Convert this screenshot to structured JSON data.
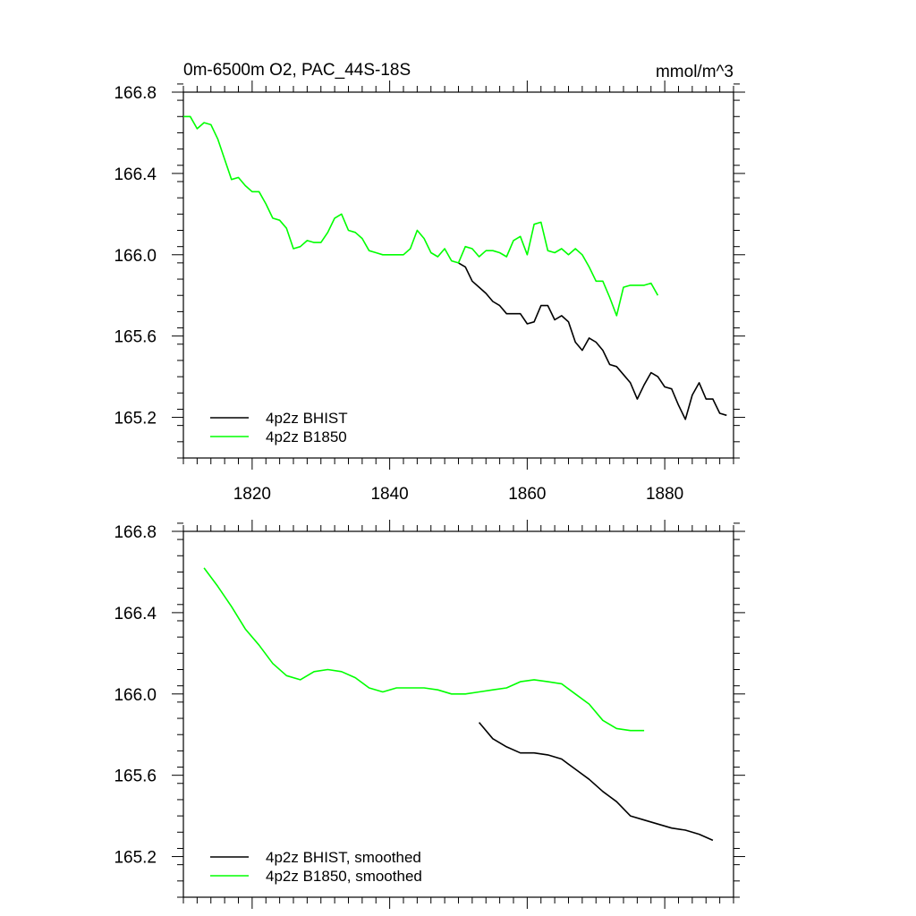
{
  "title_left": "0m-6500m O2, PAC_44S-18S",
  "title_right": "mmol/m^3",
  "colors": {
    "bhist": "#000000",
    "b1850": "#00ff00"
  },
  "chart_data": [
    {
      "type": "line",
      "panel": "top",
      "xlim": [
        1810,
        1890
      ],
      "ylim": [
        165.0,
        166.8
      ],
      "xticks": [
        1820,
        1840,
        1860,
        1880
      ],
      "xtick_labels": [
        "1820",
        "1840",
        "1860",
        "1880"
      ],
      "yticks": [
        165.2,
        165.6,
        166.0,
        166.4,
        166.8
      ],
      "ytick_labels": [
        "165.2",
        "165.6",
        "166.0",
        "166.4",
        "166.8"
      ],
      "grid": false,
      "legend": "bottom-left",
      "series": [
        {
          "name": "4p2z BHIST",
          "color": "#000000",
          "x": [
            1850,
            1851,
            1852,
            1853,
            1854,
            1855,
            1856,
            1857,
            1858,
            1859,
            1860,
            1861,
            1862,
            1863,
            1864,
            1865,
            1866,
            1867,
            1868,
            1869,
            1870,
            1871,
            1872,
            1873,
            1874,
            1875,
            1876,
            1877,
            1878,
            1879,
            1880,
            1881,
            1882,
            1883,
            1884,
            1885,
            1886,
            1887,
            1888,
            1889
          ],
          "y": [
            165.96,
            165.94,
            165.87,
            165.84,
            165.81,
            165.77,
            165.75,
            165.71,
            165.71,
            165.71,
            165.66,
            165.67,
            165.75,
            165.75,
            165.68,
            165.7,
            165.67,
            165.57,
            165.53,
            165.59,
            165.57,
            165.53,
            165.46,
            165.45,
            165.41,
            165.37,
            165.29,
            165.36,
            165.42,
            165.4,
            165.35,
            165.34,
            165.26,
            165.19,
            165.31,
            165.37,
            165.29,
            165.29,
            165.22,
            165.21
          ]
        },
        {
          "name": "4p2z B1850",
          "color": "#00ff00",
          "x": [
            1810,
            1811,
            1812,
            1813,
            1814,
            1815,
            1816,
            1817,
            1818,
            1819,
            1820,
            1821,
            1822,
            1823,
            1824,
            1825,
            1826,
            1827,
            1828,
            1829,
            1830,
            1831,
            1832,
            1833,
            1834,
            1835,
            1836,
            1837,
            1838,
            1839,
            1840,
            1841,
            1842,
            1843,
            1844,
            1845,
            1846,
            1847,
            1848,
            1849,
            1850,
            1851,
            1852,
            1853,
            1854,
            1855,
            1856,
            1857,
            1858,
            1859,
            1860,
            1861,
            1862,
            1863,
            1864,
            1865,
            1866,
            1867,
            1868,
            1869,
            1870,
            1871,
            1872,
            1873,
            1874,
            1875,
            1876,
            1877,
            1878,
            1879
          ],
          "y": [
            166.68,
            166.68,
            166.62,
            166.65,
            166.64,
            166.57,
            166.47,
            166.37,
            166.38,
            166.34,
            166.31,
            166.31,
            166.25,
            166.18,
            166.17,
            166.13,
            166.03,
            166.04,
            166.07,
            166.06,
            166.06,
            166.11,
            166.18,
            166.2,
            166.12,
            166.11,
            166.08,
            166.02,
            166.01,
            166.0,
            166.0,
            166.0,
            166.0,
            166.03,
            166.12,
            166.08,
            166.01,
            165.99,
            166.03,
            165.97,
            165.96,
            166.04,
            166.03,
            165.99,
            166.02,
            166.02,
            166.01,
            165.99,
            166.07,
            166.09,
            166.0,
            166.15,
            166.16,
            166.02,
            166.01,
            166.03,
            166.0,
            166.03,
            166.0,
            165.94,
            165.87,
            165.87,
            165.79,
            165.7,
            165.84,
            165.85,
            165.85,
            165.85,
            165.86,
            165.8
          ]
        }
      ]
    },
    {
      "type": "line",
      "panel": "bottom",
      "xlim": [
        1810,
        1890
      ],
      "ylim": [
        165.0,
        166.8
      ],
      "xticks": [
        1820,
        1840,
        1860,
        1880
      ],
      "yticks": [
        165.2,
        165.6,
        166.0,
        166.4,
        166.8
      ],
      "ytick_labels": [
        "165.2",
        "165.6",
        "166.0",
        "166.4",
        "166.8"
      ],
      "grid": false,
      "legend": "bottom-left",
      "series": [
        {
          "name": "4p2z BHIST, smoothed",
          "color": "#000000",
          "x": [
            1853,
            1855,
            1857,
            1859,
            1861,
            1863,
            1865,
            1867,
            1869,
            1871,
            1873,
            1875,
            1877,
            1879,
            1881,
            1883,
            1885,
            1887
          ],
          "y": [
            165.86,
            165.78,
            165.74,
            165.71,
            165.71,
            165.7,
            165.68,
            165.63,
            165.58,
            165.52,
            165.47,
            165.4,
            165.38,
            165.36,
            165.34,
            165.33,
            165.31,
            165.28
          ]
        },
        {
          "name": "4p2z B1850, smoothed",
          "color": "#00ff00",
          "x": [
            1813,
            1815,
            1817,
            1819,
            1821,
            1823,
            1825,
            1827,
            1829,
            1831,
            1833,
            1835,
            1837,
            1839,
            1841,
            1843,
            1845,
            1847,
            1849,
            1851,
            1853,
            1855,
            1857,
            1859,
            1861,
            1863,
            1865,
            1867,
            1869,
            1871,
            1873,
            1875,
            1877
          ],
          "y": [
            166.62,
            166.53,
            166.43,
            166.32,
            166.24,
            166.15,
            166.09,
            166.07,
            166.11,
            166.12,
            166.11,
            166.08,
            166.03,
            166.01,
            166.03,
            166.03,
            166.03,
            166.02,
            166.0,
            166.0,
            166.01,
            166.02,
            166.03,
            166.06,
            166.07,
            166.06,
            166.05,
            166.0,
            165.95,
            165.87,
            165.83,
            165.82,
            165.82
          ]
        }
      ]
    }
  ]
}
